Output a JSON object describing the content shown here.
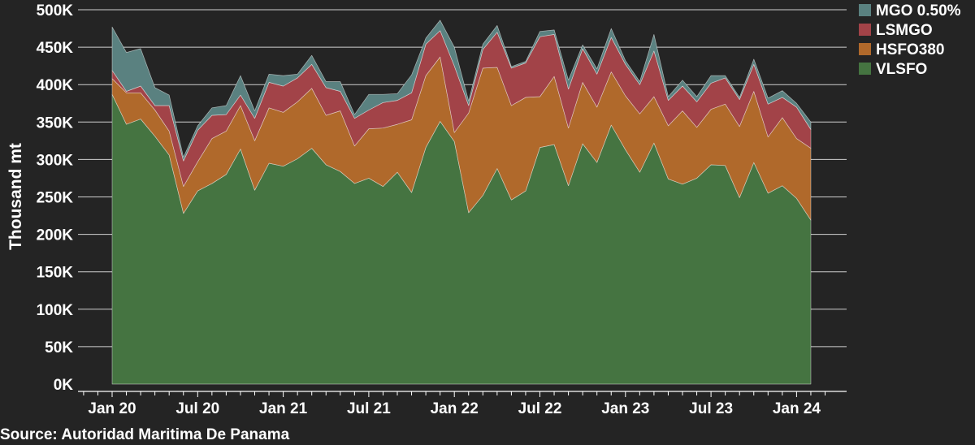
{
  "colors": {
    "background": "#242424",
    "gridline": "#d0d0d0",
    "text": "#ffffff"
  },
  "source_note": "Source: Autoridad Maritima De Panama",
  "chart_data": {
    "type": "area",
    "stacked": true,
    "ylabel": "Thousand mt",
    "xlabel": "",
    "title": "",
    "ylim": [
      0,
      500
    ],
    "y_unit": "thousand mt",
    "y_ticks": [
      {
        "value": 0,
        "label": "0K"
      },
      {
        "value": 50,
        "label": "50K"
      },
      {
        "value": 100,
        "label": "100K"
      },
      {
        "value": 150,
        "label": "150K"
      },
      {
        "value": 200,
        "label": "200K"
      },
      {
        "value": 250,
        "label": "250K"
      },
      {
        "value": 300,
        "label": "300K"
      },
      {
        "value": 350,
        "label": "350K"
      },
      {
        "value": 400,
        "label": "400K"
      },
      {
        "value": 450,
        "label": "450K"
      },
      {
        "value": 500,
        "label": "500K"
      }
    ],
    "x_ticks": [
      {
        "month": "2020-01",
        "label": "Jan 20"
      },
      {
        "month": "2020-07",
        "label": "Jul 20"
      },
      {
        "month": "2021-01",
        "label": "Jan 21"
      },
      {
        "month": "2021-07",
        "label": "Jul 21"
      },
      {
        "month": "2022-01",
        "label": "Jan 22"
      },
      {
        "month": "2022-07",
        "label": "Jul 22"
      },
      {
        "month": "2023-01",
        "label": "Jan 23"
      },
      {
        "month": "2023-07",
        "label": "Jul 23"
      },
      {
        "month": "2024-01",
        "label": "Jan 24"
      }
    ],
    "x_range": [
      "2019-11",
      "2024-03"
    ],
    "grid": true,
    "legend_position": "top-right",
    "x": [
      "2020-01",
      "2020-02",
      "2020-03",
      "2020-04",
      "2020-05",
      "2020-06",
      "2020-07",
      "2020-08",
      "2020-09",
      "2020-10",
      "2020-11",
      "2020-12",
      "2021-01",
      "2021-02",
      "2021-03",
      "2021-04",
      "2021-05",
      "2021-06",
      "2021-07",
      "2021-08",
      "2021-09",
      "2021-10",
      "2021-11",
      "2021-12",
      "2022-01",
      "2022-02",
      "2022-03",
      "2022-04",
      "2022-05",
      "2022-06",
      "2022-07",
      "2022-08",
      "2022-09",
      "2022-10",
      "2022-11",
      "2022-12",
      "2023-01",
      "2023-02",
      "2023-03",
      "2023-04",
      "2023-05",
      "2023-06",
      "2023-07",
      "2023-08",
      "2023-09",
      "2023-10",
      "2023-11",
      "2023-12",
      "2024-01",
      "2024-02"
    ],
    "series": [
      {
        "name": "VLSFO",
        "color": "#457441",
        "values": [
          387,
          347,
          354,
          331,
          306,
          228,
          258,
          268,
          280,
          314,
          259,
          295,
          291,
          301,
          315,
          293,
          284,
          268,
          275,
          264,
          283,
          256,
          316,
          351,
          324,
          229,
          252,
          288,
          246,
          258,
          316,
          320,
          265,
          321,
          296,
          346,
          313,
          283,
          322,
          274,
          267,
          275,
          293,
          292,
          249,
          296,
          255,
          265,
          248,
          219
        ]
      },
      {
        "name": "HSFO380",
        "color": "#b0692b",
        "values": [
          21,
          42,
          35,
          35,
          32,
          36,
          39,
          60,
          58,
          58,
          66,
          74,
          72,
          76,
          80,
          66,
          81,
          50,
          66,
          78,
          64,
          97,
          96,
          86,
          12,
          133,
          170,
          135,
          126,
          125,
          68,
          91,
          77,
          82,
          74,
          71,
          72,
          78,
          62,
          71,
          98,
          68,
          74,
          82,
          95,
          95,
          75,
          91,
          80,
          96
        ]
      },
      {
        "name": "LSMGO",
        "color": "#a24348",
        "values": [
          11,
          2,
          9,
          6,
          34,
          34,
          42,
          31,
          22,
          14,
          30,
          34,
          35,
          32,
          32,
          37,
          26,
          37,
          25,
          34,
          32,
          36,
          42,
          35,
          89,
          10,
          25,
          47,
          50,
          46,
          80,
          56,
          52,
          45,
          44,
          46,
          42,
          39,
          61,
          34,
          33,
          34,
          35,
          35,
          36,
          36,
          44,
          27,
          42,
          25
        ]
      },
      {
        "name": "MGO 0.50%",
        "color": "#5a8180",
        "values": [
          58,
          52,
          50,
          24,
          14,
          5,
          6,
          10,
          12,
          26,
          10,
          11,
          14,
          5,
          12,
          8,
          13,
          5,
          21,
          11,
          9,
          24,
          8,
          14,
          25,
          6,
          7,
          9,
          2,
          2,
          7,
          6,
          12,
          5,
          7,
          12,
          5,
          4,
          22,
          5,
          8,
          7,
          10,
          3,
          3,
          7,
          8,
          9,
          5,
          10
        ]
      }
    ]
  }
}
